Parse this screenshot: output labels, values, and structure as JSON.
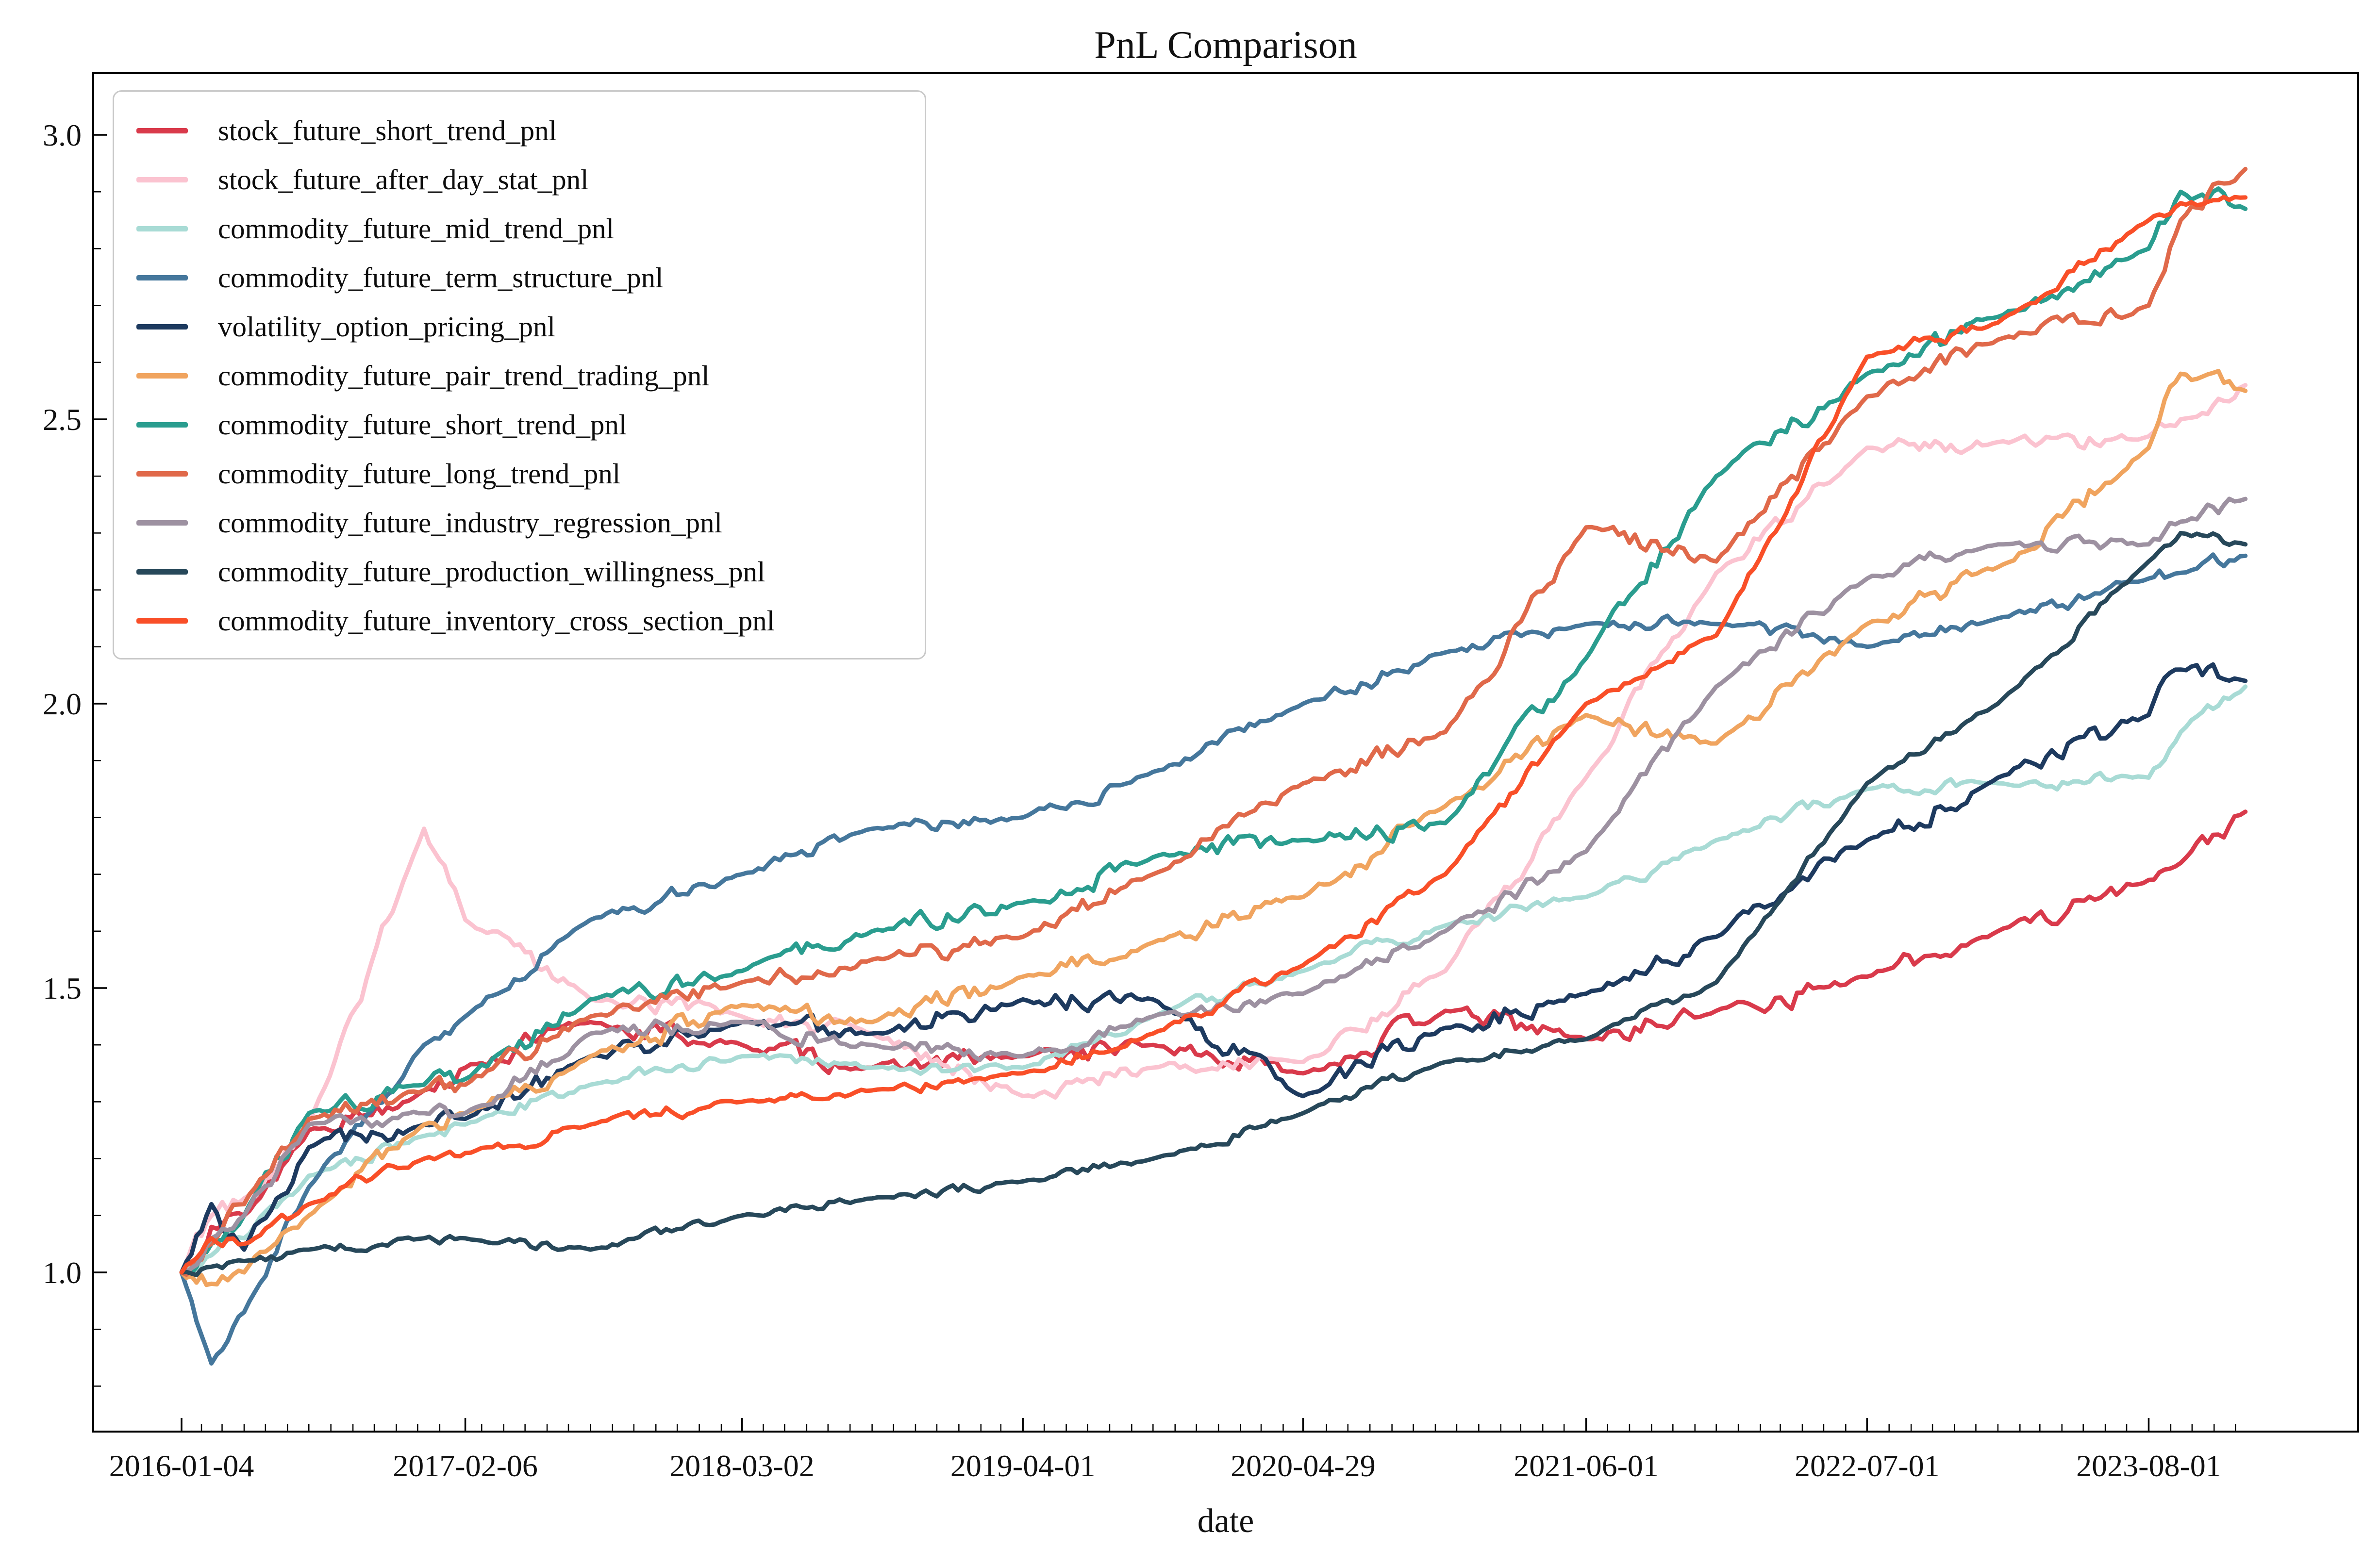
{
  "chart": {
    "title": "PnL Comparison",
    "xlabel": "date",
    "y_tick_labels": [
      "1.0",
      "1.5",
      "2.0",
      "2.5",
      "3.0"
    ],
    "x_tick_labels": [
      "2016-01-04",
      "2017-02-06",
      "2018-03-02",
      "2019-04-01",
      "2020-04-29",
      "2021-06-01",
      "2022-07-01",
      "2023-08-01"
    ]
  },
  "chart_data": {
    "type": "line",
    "title": "PnL Comparison",
    "xlabel": "date",
    "ylabel": "",
    "grid": false,
    "legend_position": "upper-left",
    "ylim": [
      0.72,
      3.11
    ],
    "y_ticks": [
      1.0,
      1.5,
      2.0,
      2.5,
      3.0
    ],
    "x_ticks": [
      "2016-01-04",
      "2017-02-06",
      "2018-03-02",
      "2019-04-01",
      "2020-04-29",
      "2021-06-01",
      "2022-07-01",
      "2023-08-01"
    ],
    "x_dates": [
      "2016-01-04",
      "2016-02-15",
      "2016-04-01",
      "2016-07-01",
      "2016-12-10",
      "2017-02-06",
      "2017-08-01",
      "2018-03-02",
      "2018-09-01",
      "2019-04-01",
      "2019-10-01",
      "2020-04-29",
      "2020-11-15",
      "2021-06-01",
      "2021-12-01",
      "2022-07-01",
      "2023-01-01",
      "2023-08-01",
      "2023-09-15",
      "2023-12-15"
    ],
    "series": [
      {
        "name": "stock_future_short_trend_pnl",
        "color": "#d93a4b",
        "values": [
          1.0,
          1.08,
          1.1,
          1.25,
          1.32,
          1.36,
          1.44,
          1.4,
          1.36,
          1.38,
          1.4,
          1.35,
          1.46,
          1.41,
          1.46,
          1.52,
          1.6,
          1.69,
          1.72,
          1.81
        ]
      },
      {
        "name": "stock_future_after_day_stat_pnl",
        "color": "#fbc3d0",
        "values": [
          1.0,
          1.1,
          1.13,
          1.26,
          1.78,
          1.62,
          1.48,
          1.45,
          1.42,
          1.31,
          1.36,
          1.37,
          1.53,
          1.87,
          2.23,
          2.45,
          2.46,
          2.47,
          2.5,
          2.56
        ]
      },
      {
        "name": "commodity_future_mid_trend_pnl",
        "color": "#a8dbd5",
        "values": [
          1.0,
          1.03,
          1.06,
          1.17,
          1.24,
          1.26,
          1.33,
          1.38,
          1.36,
          1.36,
          1.45,
          1.53,
          1.61,
          1.66,
          1.76,
          1.85,
          1.86,
          1.87,
          1.95,
          2.03
        ]
      },
      {
        "name": "commodity_future_term_structure_pnl",
        "color": "#45779c",
        "values": [
          1.0,
          0.84,
          0.93,
          1.15,
          1.4,
          1.45,
          1.62,
          1.7,
          1.78,
          1.8,
          1.88,
          2.0,
          2.09,
          2.14,
          2.14,
          2.1,
          2.15,
          2.22,
          2.23,
          2.26
        ]
      },
      {
        "name": "volatility_option_pricing_pnl",
        "color": "#1d3a5f",
        "values": [
          1.0,
          1.12,
          1.04,
          1.22,
          1.26,
          1.27,
          1.38,
          1.44,
          1.42,
          1.48,
          1.48,
          1.31,
          1.43,
          1.49,
          1.59,
          1.76,
          1.87,
          1.98,
          2.06,
          2.04
        ]
      },
      {
        "name": "commodity_future_pair_trend_trading_pnl",
        "color": "#f0a45f",
        "values": [
          1.0,
          0.98,
          1.0,
          1.1,
          1.26,
          1.28,
          1.38,
          1.47,
          1.44,
          1.52,
          1.58,
          1.66,
          1.82,
          1.98,
          1.93,
          2.14,
          2.24,
          2.45,
          2.58,
          2.55
        ]
      },
      {
        "name": "commodity_future_short_trend_pnl",
        "color": "#2a9d8f",
        "values": [
          1.0,
          1.05,
          1.1,
          1.28,
          1.33,
          1.34,
          1.48,
          1.53,
          1.6,
          1.65,
          1.73,
          1.76,
          1.79,
          2.08,
          2.4,
          2.58,
          2.68,
          2.8,
          2.9,
          2.87
        ]
      },
      {
        "name": "commodity_future_long_trend_pnl",
        "color": "#e0694a",
        "values": [
          1.0,
          1.05,
          1.12,
          1.27,
          1.32,
          1.33,
          1.45,
          1.51,
          1.55,
          1.59,
          1.7,
          1.86,
          1.95,
          2.31,
          2.25,
          2.54,
          2.64,
          2.7,
          2.85,
          2.94
        ]
      },
      {
        "name": "commodity_future_industry_regression_pnl",
        "color": "#9d91a1",
        "values": [
          1.0,
          1.06,
          1.1,
          1.26,
          1.28,
          1.28,
          1.42,
          1.44,
          1.4,
          1.38,
          1.45,
          1.49,
          1.6,
          1.74,
          2.03,
          2.22,
          2.28,
          2.28,
          2.32,
          2.36
        ]
      },
      {
        "name": "commodity_future_production_willingness_pnl",
        "color": "#27485a",
        "values": [
          1.0,
          1.01,
          1.02,
          1.04,
          1.06,
          1.06,
          1.04,
          1.1,
          1.13,
          1.16,
          1.2,
          1.28,
          1.37,
          1.41,
          1.51,
          1.86,
          2.0,
          2.25,
          2.3,
          2.28
        ]
      },
      {
        "name": "commodity_future_inventory_cross_section_pnl",
        "color": "#f94f28",
        "values": [
          1.0,
          1.06,
          1.05,
          1.12,
          1.2,
          1.21,
          1.26,
          1.3,
          1.32,
          1.35,
          1.42,
          1.54,
          1.7,
          2.0,
          2.12,
          2.61,
          2.67,
          2.85,
          2.88,
          2.89
        ]
      }
    ]
  }
}
